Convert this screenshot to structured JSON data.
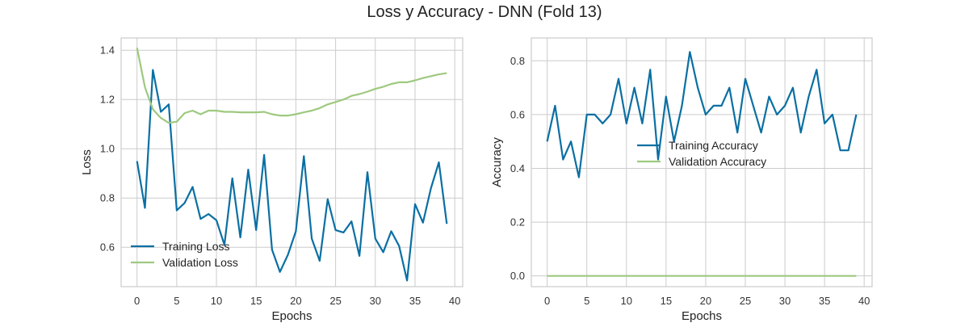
{
  "figure": {
    "title": "Loss y Accuracy - DNN (Fold 13)"
  },
  "colors": {
    "training": "#0a6fa3",
    "validation": "#9ec97f",
    "grid": "#cccccc",
    "spine": "#cccccc"
  },
  "chart_data": [
    {
      "type": "line",
      "xlabel": "Epochs",
      "ylabel": "Loss",
      "xlim": [
        -2,
        41
      ],
      "ylim": [
        0.44,
        1.45
      ],
      "xticks": [
        0,
        5,
        10,
        15,
        20,
        25,
        30,
        35,
        40
      ],
      "yticks": [
        0.6,
        0.8,
        1.0,
        1.2,
        1.4
      ],
      "ytick_labels": [
        "0.6",
        "0.8",
        "1.0",
        "1.2",
        "1.4"
      ],
      "grid": true,
      "legend_position": "lower-left",
      "series": [
        {
          "name": "Training Loss",
          "color": "training",
          "x": [
            0,
            1,
            2,
            3,
            4,
            5,
            6,
            7,
            8,
            9,
            10,
            11,
            12,
            13,
            14,
            15,
            16,
            17,
            18,
            19,
            20,
            21,
            22,
            23,
            24,
            25,
            26,
            27,
            28,
            29,
            30,
            31,
            32,
            33,
            34,
            35,
            36,
            37,
            38,
            39
          ],
          "y": [
            0.95,
            0.76,
            1.32,
            1.15,
            1.18,
            0.75,
            0.78,
            0.845,
            0.715,
            0.735,
            0.71,
            0.61,
            0.88,
            0.64,
            0.915,
            0.67,
            0.975,
            0.59,
            0.5,
            0.57,
            0.665,
            0.97,
            0.635,
            0.545,
            0.795,
            0.67,
            0.66,
            0.705,
            0.565,
            0.905,
            0.635,
            0.58,
            0.665,
            0.605,
            0.465,
            0.775,
            0.7,
            0.84,
            0.945,
            0.695
          ]
        },
        {
          "name": "Validation Loss",
          "color": "validation",
          "x": [
            0,
            1,
            2,
            3,
            4,
            5,
            6,
            7,
            8,
            9,
            10,
            11,
            12,
            13,
            14,
            15,
            16,
            17,
            18,
            19,
            20,
            21,
            22,
            23,
            24,
            25,
            26,
            27,
            28,
            29,
            30,
            31,
            32,
            33,
            34,
            35,
            36,
            37,
            38,
            39
          ],
          "y": [
            1.41,
            1.25,
            1.16,
            1.125,
            1.105,
            1.11,
            1.145,
            1.155,
            1.14,
            1.155,
            1.155,
            1.15,
            1.15,
            1.148,
            1.148,
            1.148,
            1.15,
            1.14,
            1.135,
            1.135,
            1.14,
            1.148,
            1.155,
            1.165,
            1.18,
            1.19,
            1.2,
            1.215,
            1.222,
            1.232,
            1.243,
            1.252,
            1.263,
            1.27,
            1.27,
            1.278,
            1.287,
            1.295,
            1.302,
            1.307
          ]
        }
      ]
    },
    {
      "type": "line",
      "xlabel": "Epochs",
      "ylabel": "Accuracy",
      "xlim": [
        -2,
        41
      ],
      "ylim": [
        -0.04,
        0.885
      ],
      "xticks": [
        0,
        5,
        10,
        15,
        20,
        25,
        30,
        35,
        40
      ],
      "yticks": [
        0.0,
        0.2,
        0.4,
        0.6,
        0.8
      ],
      "ytick_labels": [
        "0.0",
        "0.2",
        "0.4",
        "0.6",
        "0.8"
      ],
      "grid": true,
      "legend_position": "center",
      "series": [
        {
          "name": "Training Accuracy",
          "color": "training",
          "x": [
            0,
            1,
            2,
            3,
            4,
            5,
            6,
            7,
            8,
            9,
            10,
            11,
            12,
            13,
            14,
            15,
            16,
            17,
            18,
            19,
            20,
            21,
            22,
            23,
            24,
            25,
            26,
            27,
            28,
            29,
            30,
            31,
            32,
            33,
            34,
            35,
            36,
            37,
            38,
            39
          ],
          "y": [
            0.5,
            0.633,
            0.433,
            0.5,
            0.367,
            0.6,
            0.6,
            0.567,
            0.6,
            0.733,
            0.567,
            0.7,
            0.567,
            0.767,
            0.433,
            0.667,
            0.5,
            0.633,
            0.833,
            0.7,
            0.6,
            0.633,
            0.633,
            0.7,
            0.533,
            0.733,
            0.633,
            0.533,
            0.667,
            0.6,
            0.633,
            0.7,
            0.533,
            0.667,
            0.767,
            0.567,
            0.6,
            0.467,
            0.467,
            0.6
          ]
        },
        {
          "name": "Validation Accuracy",
          "color": "validation",
          "x": [
            0,
            1,
            2,
            3,
            4,
            5,
            6,
            7,
            8,
            9,
            10,
            11,
            12,
            13,
            14,
            15,
            16,
            17,
            18,
            19,
            20,
            21,
            22,
            23,
            24,
            25,
            26,
            27,
            28,
            29,
            30,
            31,
            32,
            33,
            34,
            35,
            36,
            37,
            38,
            39
          ],
          "y": [
            0,
            0,
            0,
            0,
            0,
            0,
            0,
            0,
            0,
            0,
            0,
            0,
            0,
            0,
            0,
            0,
            0,
            0,
            0,
            0,
            0,
            0,
            0,
            0,
            0,
            0,
            0,
            0,
            0,
            0,
            0,
            0,
            0,
            0,
            0,
            0,
            0,
            0,
            0,
            0
          ]
        }
      ]
    }
  ]
}
